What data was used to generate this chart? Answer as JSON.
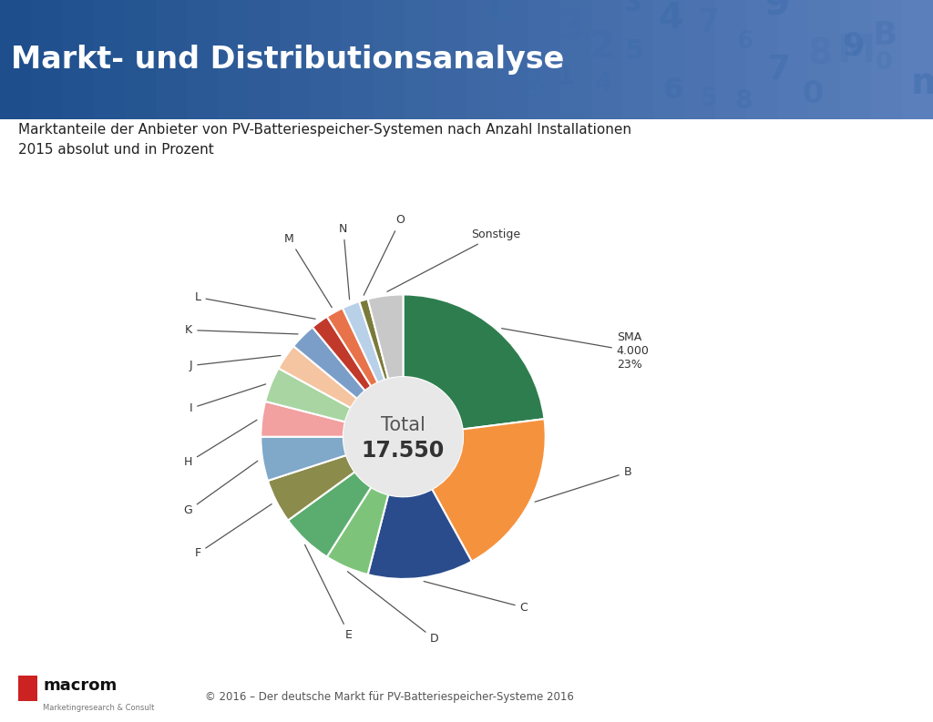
{
  "title_header": "Markt- und Distributionsanalyse",
  "subtitle": "Marktanteile der Anbieter von PV-Batteriespeicher-Systemen nach Anzahl Installationen\n2015 absolut und in Prozent",
  "total_label": "Total",
  "total_value": "17.550",
  "footer": "© 2016 – Der deutsche Markt für PV-Batteriespeicher-Systeme 2016",
  "segments": [
    {
      "label": "SMA\n4.000\n23%",
      "short": "SMA",
      "value": 23,
      "color": "#2E7D4F"
    },
    {
      "label": "B",
      "short": "B",
      "value": 19,
      "color": "#F5923E"
    },
    {
      "label": "C",
      "short": "C",
      "value": 12,
      "color": "#2B4C8C"
    },
    {
      "label": "D",
      "short": "D",
      "value": 5,
      "color": "#7DC47A"
    },
    {
      "label": "E",
      "short": "E",
      "value": 6,
      "color": "#5BAD6F"
    },
    {
      "label": "F",
      "short": "F",
      "value": 5,
      "color": "#8B8B4B"
    },
    {
      "label": "G",
      "short": "G",
      "value": 5,
      "color": "#7FA8C9"
    },
    {
      "label": "H",
      "short": "H",
      "value": 4,
      "color": "#F2A0A0"
    },
    {
      "label": "I",
      "short": "I",
      "value": 4,
      "color": "#A8D5A2"
    },
    {
      "label": "J",
      "short": "J",
      "value": 3,
      "color": "#F5C4A0"
    },
    {
      "label": "K",
      "short": "K",
      "value": 3,
      "color": "#7B9EC8"
    },
    {
      "label": "L",
      "short": "L",
      "value": 2,
      "color": "#C0392B"
    },
    {
      "label": "M",
      "short": "M",
      "value": 2,
      "color": "#E8734A"
    },
    {
      "label": "N",
      "short": "N",
      "value": 2,
      "color": "#B8D0E8"
    },
    {
      "label": "O",
      "short": "O",
      "value": 1,
      "color": "#7A7A3A"
    },
    {
      "label": "Sonstige",
      "short": "Sonstige",
      "value": 4,
      "color": "#C8C8C8"
    }
  ],
  "header_bg_color_left": "#1A4A82",
  "header_bg_color_right": "#6A8FBF",
  "header_text_color": "#FFFFFF",
  "background_color": "#FFFFFF",
  "donut_hole_color": "#E8E8E8",
  "annotation_color": "#333333",
  "footer_text_color": "#555555",
  "macrom_red": "#CC2222"
}
